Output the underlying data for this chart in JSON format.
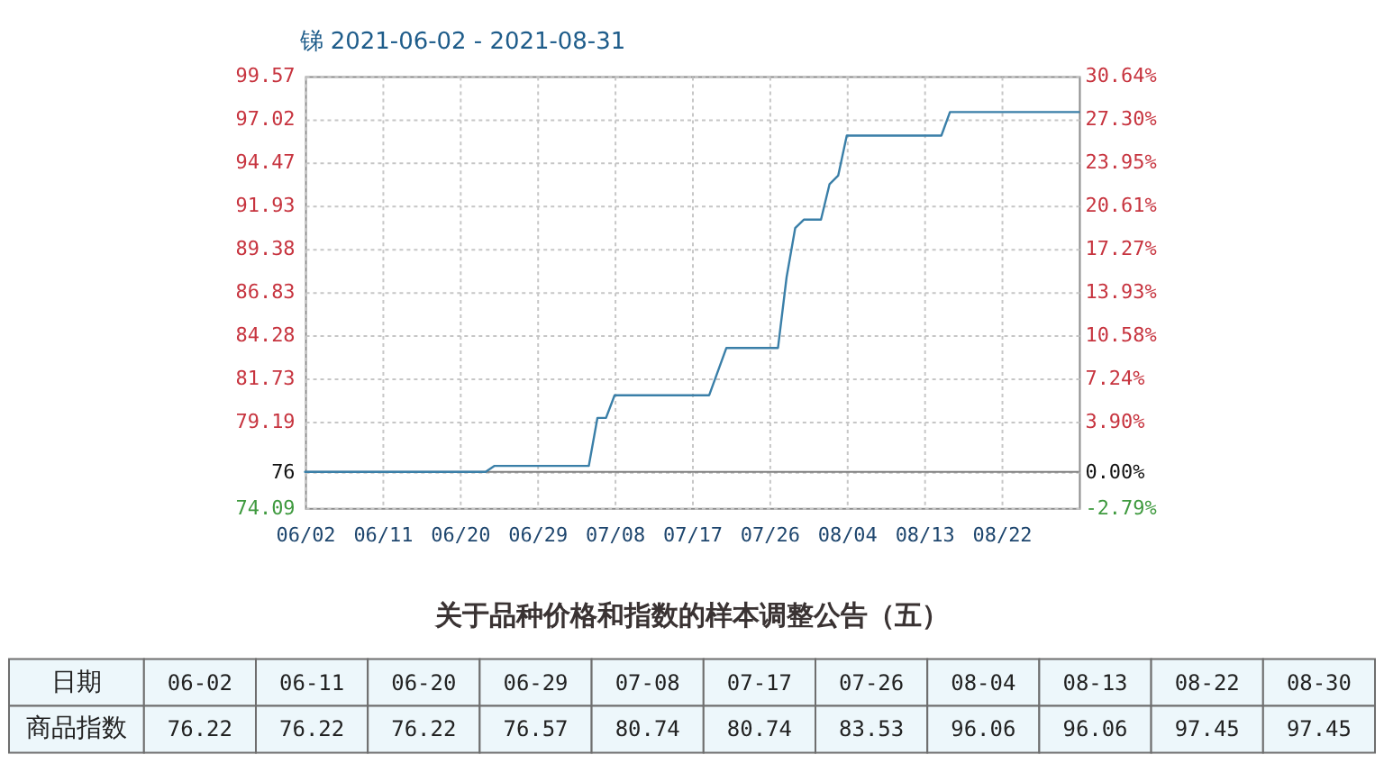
{
  "chart_data": [
    {
      "type": "line",
      "title": "锑 2021-06-02 - 2021-08-31",
      "x": [
        "2021-06-02",
        "2021-06-11",
        "2021-06-20",
        "2021-06-23",
        "2021-06-24",
        "2021-06-29",
        "2021-07-05",
        "2021-07-06",
        "2021-07-07",
        "2021-07-08",
        "2021-07-17",
        "2021-07-19",
        "2021-07-21",
        "2021-07-26",
        "2021-07-27",
        "2021-07-28",
        "2021-07-29",
        "2021-07-30",
        "2021-08-01",
        "2021-08-02",
        "2021-08-03",
        "2021-08-04",
        "2021-08-13",
        "2021-08-15",
        "2021-08-16",
        "2021-08-22",
        "2021-08-30",
        "2021-08-31"
      ],
      "series": [
        {
          "color": "#3a7fa8",
          "values": [
            76.22,
            76.22,
            76.22,
            76.22,
            76.57,
            76.57,
            76.57,
            79.4,
            79.4,
            80.74,
            80.74,
            80.74,
            83.53,
            83.53,
            83.53,
            87.7,
            90.6,
            91.1,
            91.1,
            93.2,
            93.7,
            96.06,
            96.06,
            96.06,
            97.45,
            97.45,
            97.45,
            97.45
          ]
        }
      ],
      "xlim": [
        "2021-06-02",
        "2021-08-31"
      ],
      "xticks": [
        {
          "value": "2021-06-02",
          "label": "06/02"
        },
        {
          "value": "2021-06-11",
          "label": "06/11"
        },
        {
          "value": "2021-06-20",
          "label": "06/20"
        },
        {
          "value": "2021-06-29",
          "label": "06/29"
        },
        {
          "value": "2021-07-08",
          "label": "07/08"
        },
        {
          "value": "2021-07-17",
          "label": "07/17"
        },
        {
          "value": "2021-07-26",
          "label": "07/26"
        },
        {
          "value": "2021-08-04",
          "label": "08/04"
        },
        {
          "value": "2021-08-13",
          "label": "08/13"
        },
        {
          "value": "2021-08-22",
          "label": "08/22"
        }
      ],
      "ylim": [
        74.09,
        99.57
      ],
      "yticks": [
        74.09,
        {
          "value": 76.22,
          "label": "76"
        },
        79.19,
        81.73,
        84.28,
        86.83,
        89.38,
        91.93,
        94.47,
        97.02,
        99.57
      ],
      "y2lim": [
        -2.79,
        30.64
      ],
      "y2ticks": [
        {
          "value": -2.79,
          "label": "-2.79%"
        },
        {
          "value": 0,
          "label": "0.00%"
        },
        {
          "value": 3.9,
          "label": "3.90%"
        },
        {
          "value": 7.24,
          "label": "7.24%"
        },
        {
          "value": 10.58,
          "label": "10.58%"
        },
        {
          "value": 13.93,
          "label": "13.93%"
        },
        {
          "value": 17.27,
          "label": "17.27%"
        },
        {
          "value": 20.61,
          "label": "20.61%"
        },
        {
          "value": 23.95,
          "label": "23.95%"
        },
        {
          "value": 27.3,
          "label": "27.30%"
        },
        {
          "value": 30.64,
          "label": "30.64%"
        }
      ],
      "ref_lines": [
        {
          "axis": "y",
          "value": 76.22,
          "color": "#808080"
        }
      ],
      "grid": true
    },
    {
      "type": "other",
      "title": "关于品种价格和指数的样本调整公告（五）",
      "annotations": [
        "日期",
        "商品指数"
      ],
      "categories": [
        "06-02",
        "06-11",
        "06-20",
        "06-29",
        "07-08",
        "07-17",
        "07-26",
        "08-04",
        "08-13",
        "08-22",
        "08-30"
      ],
      "values": [
        76.22,
        76.22,
        76.22,
        76.57,
        80.74,
        80.74,
        83.53,
        96.06,
        96.06,
        97.45,
        97.45
      ],
      "data_labels": true
    }
  ]
}
